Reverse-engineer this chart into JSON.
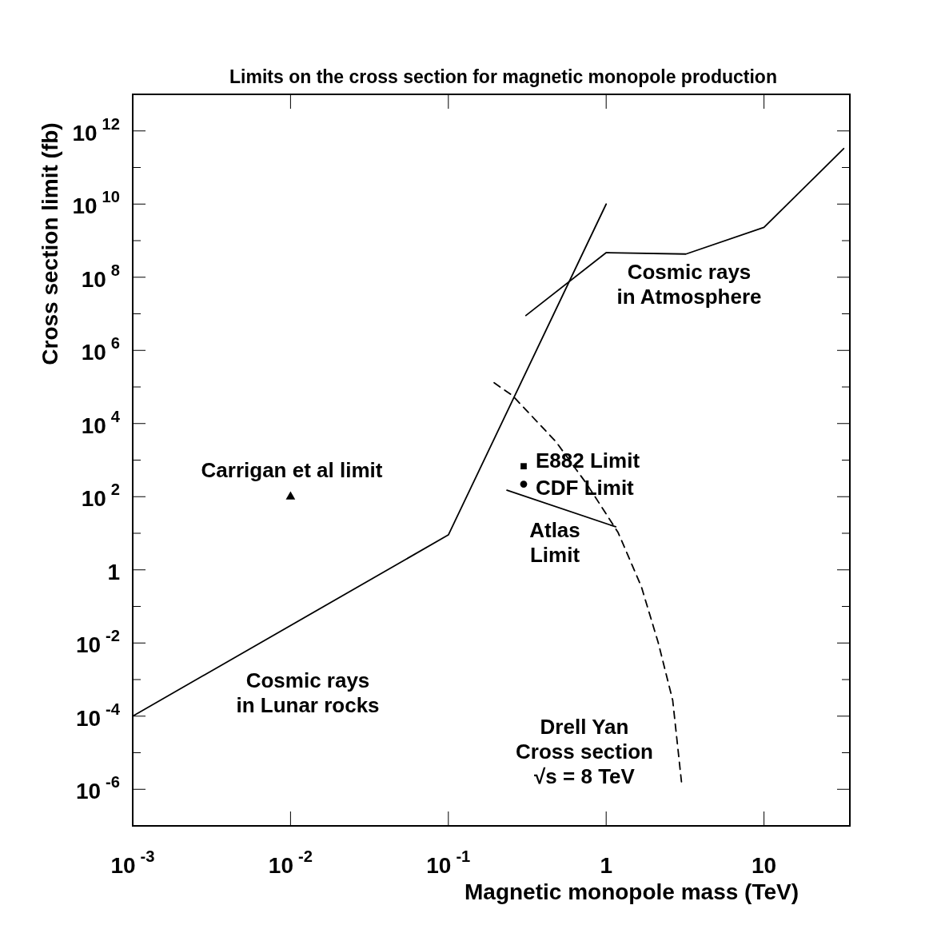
{
  "chart_data": {
    "type": "line",
    "title": "Limits on the cross section for magnetic monopole production",
    "xlabel": "Magnetic monopole mass (TeV)",
    "ylabel": "Cross section limit (fb)",
    "log": "xy",
    "xlim": [
      0.001,
      35
    ],
    "ylim": [
      1e-07,
      10000000000000.0
    ],
    "xticks": [
      {
        "value": 0.001,
        "label": "10$^{-3}$"
      },
      {
        "value": 0.01,
        "label": "10$^{-2}$"
      },
      {
        "value": 0.1,
        "label": "10$^{-1}$"
      },
      1,
      10
    ],
    "yticks": [
      {
        "value": 1e-06,
        "label": "10$^{-6}$"
      },
      {
        "value": 1e-05,
        "label": null
      },
      {
        "value": 0.0001,
        "label": "10$^{-4}$"
      },
      {
        "value": 0.001,
        "label": null
      },
      {
        "value": 0.01,
        "label": "10$^{-2}$"
      },
      {
        "value": 0.1,
        "label": null
      },
      1,
      {
        "value": 10,
        "label": null
      },
      {
        "value": 100,
        "label": "10$^{2}$"
      },
      {
        "value": 1000,
        "label": null
      },
      {
        "value": 10000.0,
        "label": "10$^{4}$"
      },
      {
        "value": 100000.0,
        "label": null
      },
      {
        "value": 1000000.0,
        "label": "10$^{6}$"
      },
      {
        "value": 10000000.0,
        "label": null
      },
      {
        "value": 100000000.0,
        "label": "10$^{8}$"
      },
      {
        "value": 1000000000.0,
        "label": null
      },
      {
        "value": 10000000000.0,
        "label": "10$^{10}$"
      },
      {
        "value": 100000000000.0,
        "label": null
      },
      {
        "value": 1000000000000.0,
        "label": "10$^{12}$"
      }
    ],
    "series": [
      {
        "name": "Cosmic rays\nin Lunar rocks",
        "color": "#000000",
        "line_style": "solid",
        "x": [
          0.001,
          0.1,
          1
        ],
        "values": [
          0.0001,
          9,
          10000000000.0
        ]
      },
      {
        "name": "Cosmic rays\nin Atmosphere",
        "color": "#000000",
        "line_style": "solid",
        "x": [
          0.31,
          1,
          3.2,
          10,
          32
        ],
        "values": [
          9000000.0,
          470000000.0,
          430000000.0,
          2300000000.0,
          330000000000.0
        ]
      },
      {
        "name": "Atlas\nLimit",
        "color": "#000000",
        "line_style": "solid",
        "x": [
          0.235,
          1.15
        ],
        "values": [
          150,
          15
        ]
      },
      {
        "name": "Drell Yan\nCross section\n√s = 8 TeV",
        "color": "#000000",
        "line_style": "dashed",
        "x": [
          0.195,
          0.255,
          0.48,
          0.755,
          1.19,
          1.67,
          2.14,
          2.64,
          3.0
        ],
        "values": [
          130000.0,
          58000.0,
          3200,
          220,
          10.5,
          0.35,
          0.01,
          0.00027,
          1.6e-06
        ]
      },
      {
        "name": "Carrigan et al limit",
        "type": "scatter",
        "color": "#000000",
        "marker": "triangle",
        "x": [
          0.01
        ],
        "values": [
          100
        ]
      },
      {
        "name": "E882 Limit",
        "type": "scatter",
        "color": "#000000",
        "marker": "square",
        "x": [
          0.3
        ],
        "values": [
          680
        ]
      },
      {
        "name": "CDF Limit",
        "type": "scatter",
        "color": "#000000",
        "marker": "circle",
        "x": [
          0.3
        ],
        "values": [
          220
        ]
      }
    ]
  }
}
